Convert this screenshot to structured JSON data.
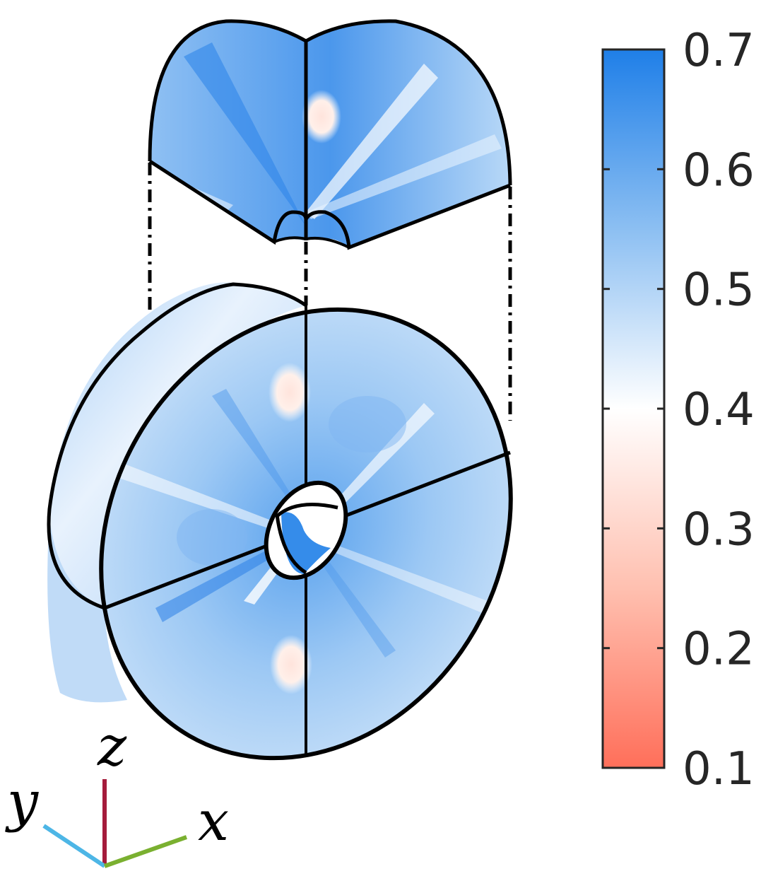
{
  "figure": {
    "description_type": "exploded 3D view of an annular disk with colormapped surface",
    "colormap": {
      "min": 0.1,
      "max": 0.7,
      "ticks": [
        "0.7",
        "0.6",
        "0.5",
        "0.4",
        "0.3",
        "0.2",
        "0.1"
      ],
      "color_low": "#ff6f5a",
      "color_mid": "#ffffff",
      "color_high": "#1f7fe8",
      "mid_value": 0.4
    },
    "axes_triad": {
      "z_label": "z",
      "y_label": "y",
      "x_label": "x",
      "z_color": "#a51c3c",
      "y_color": "#4db6e6",
      "x_color": "#7ab030"
    }
  }
}
